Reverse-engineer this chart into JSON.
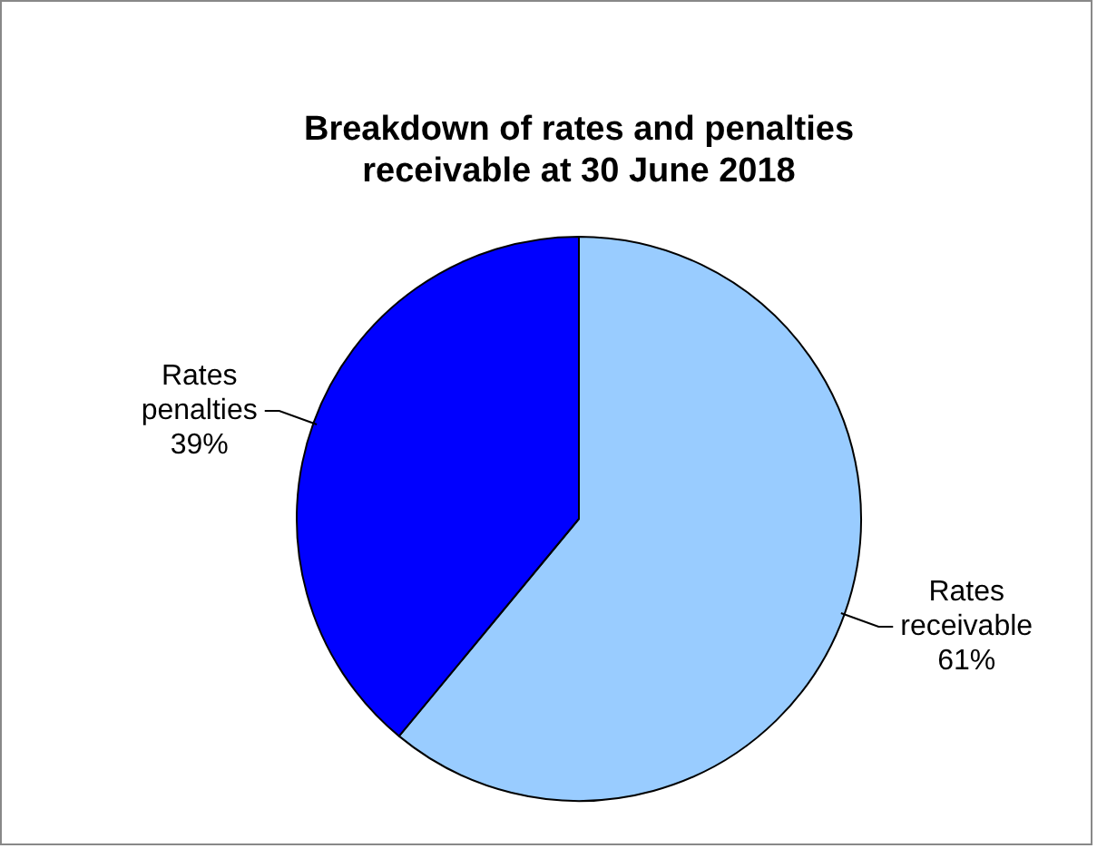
{
  "chart_data": {
    "type": "pie",
    "title": "Breakdown of rates and penalties receivable at 30 June 2018",
    "categories": [
      "Rates receivable",
      "Rates penalties"
    ],
    "values": [
      61,
      39
    ],
    "colors": [
      "#99ccff",
      "#0000ff"
    ],
    "value_labels": [
      "61%",
      "39%"
    ],
    "legend": false
  }
}
